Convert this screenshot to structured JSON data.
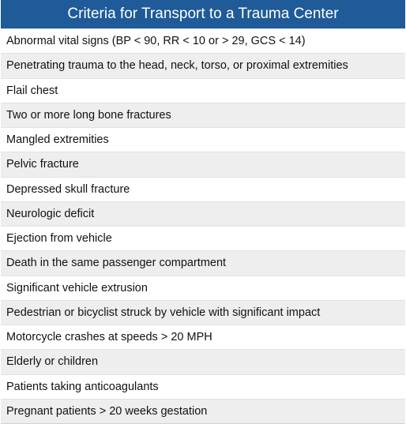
{
  "table": {
    "title": "Criteria for Transport to a Trauma Center",
    "colors": {
      "header_bg": "#1f5a99",
      "header_text": "#ffffff",
      "row_alt_bg": "#eeeeee"
    },
    "rows": [
      "Abnormal vital signs (BP < 90, RR < 10 or > 29, GCS < 14)",
      "Penetrating trauma to the head, neck, torso, or proximal extremities",
      "Flail chest",
      "Two or more long bone fractures",
      "Mangled extremities",
      "Pelvic fracture",
      "Depressed skull fracture",
      "Neurologic deficit",
      "Ejection from vehicle",
      "Death in the same passenger compartment",
      "Significant vehicle extrusion",
      "Pedestrian or bicyclist struck by vehicle with significant impact",
      "Motorcycle crashes at speeds > 20 MPH",
      "Elderly or children",
      "Patients taking anticoagulants",
      "Pregnant patients > 20 weeks gestation"
    ]
  }
}
